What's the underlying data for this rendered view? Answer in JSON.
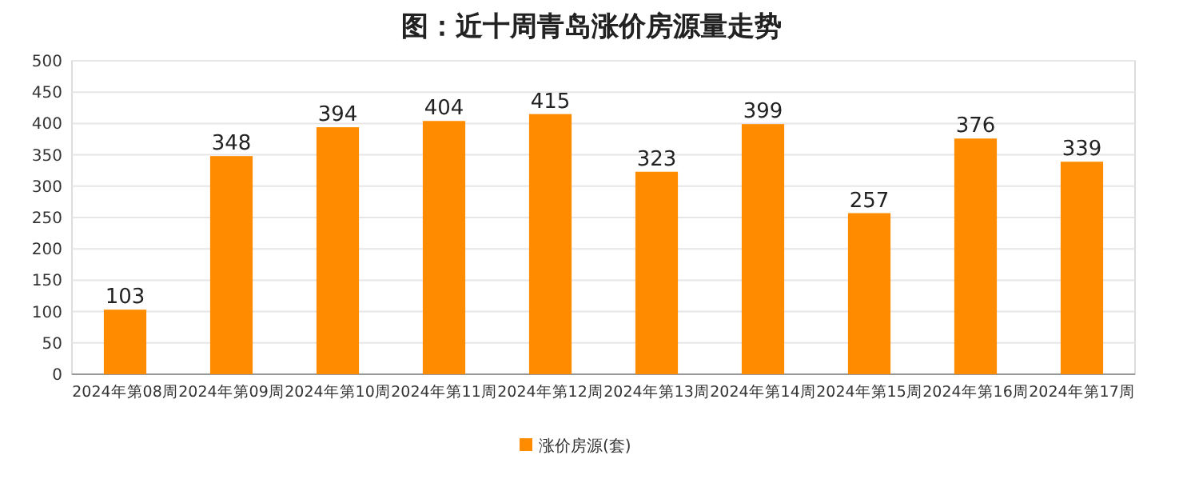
{
  "chart_data": {
    "type": "bar",
    "title": "图：近十周青岛涨价房源量走势",
    "categories": [
      "2024年第08周",
      "2024年第09周",
      "2024年第10周",
      "2024年第11周",
      "2024年第12周",
      "2024年第13周",
      "2024年第14周",
      "2024年第15周",
      "2024年第16周",
      "2024年第17周"
    ],
    "series": [
      {
        "name": "涨价房源(套)",
        "color": "#ff8c00",
        "values": [
          103,
          348,
          394,
          404,
          415,
          323,
          399,
          257,
          376,
          339
        ]
      }
    ],
    "ylim": [
      0,
      500
    ],
    "yticks": [
      0,
      50,
      100,
      150,
      200,
      250,
      300,
      350,
      400,
      450,
      500
    ],
    "grid": "y",
    "legend": "bottom",
    "data_labels": true
  }
}
